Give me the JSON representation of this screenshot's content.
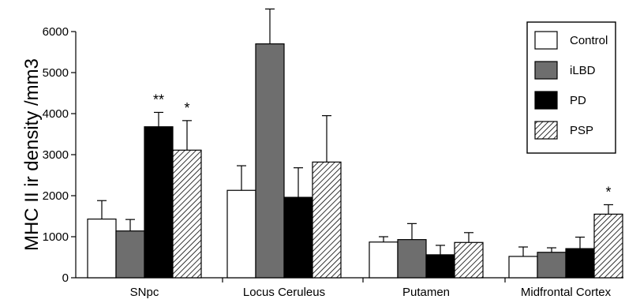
{
  "chart_data": {
    "type": "bar",
    "title": "",
    "xlabel": "",
    "ylabel": "MHC II ir density /mm3",
    "ylim": [
      0,
      6000
    ],
    "yticks": [
      0,
      1000,
      2000,
      3000,
      4000,
      5000,
      6000
    ],
    "categories": [
      "SNpc",
      "Locus Ceruleus",
      "Putamen",
      "Midfrontal Cortex"
    ],
    "series": [
      {
        "name": "Control",
        "fill": "#ffffff",
        "pattern": "none",
        "values": [
          1430,
          2130,
          870,
          520
        ],
        "errors": [
          450,
          600,
          130,
          230
        ]
      },
      {
        "name": "iLBD",
        "fill": "#6e6e6e",
        "pattern": "none",
        "values": [
          1140,
          5700,
          930,
          620
        ],
        "errors": [
          280,
          850,
          390,
          110
        ]
      },
      {
        "name": "PD",
        "fill": "#000000",
        "pattern": "none",
        "values": [
          3680,
          1960,
          560,
          710
        ],
        "errors": [
          350,
          720,
          230,
          280
        ]
      },
      {
        "name": "PSP",
        "fill": "#ffffff",
        "pattern": "diagonal-hatch",
        "values": [
          3110,
          2820,
          860,
          1550
        ],
        "errors": [
          720,
          1130,
          240,
          230
        ]
      }
    ],
    "annotations": [
      {
        "category": 0,
        "series": 2,
        "text": "**"
      },
      {
        "category": 0,
        "series": 3,
        "text": "*"
      },
      {
        "category": 1,
        "series": 1,
        "text": "*"
      },
      {
        "category": 3,
        "series": 3,
        "text": "*"
      }
    ],
    "legend_position": "top-right",
    "grid": false
  }
}
